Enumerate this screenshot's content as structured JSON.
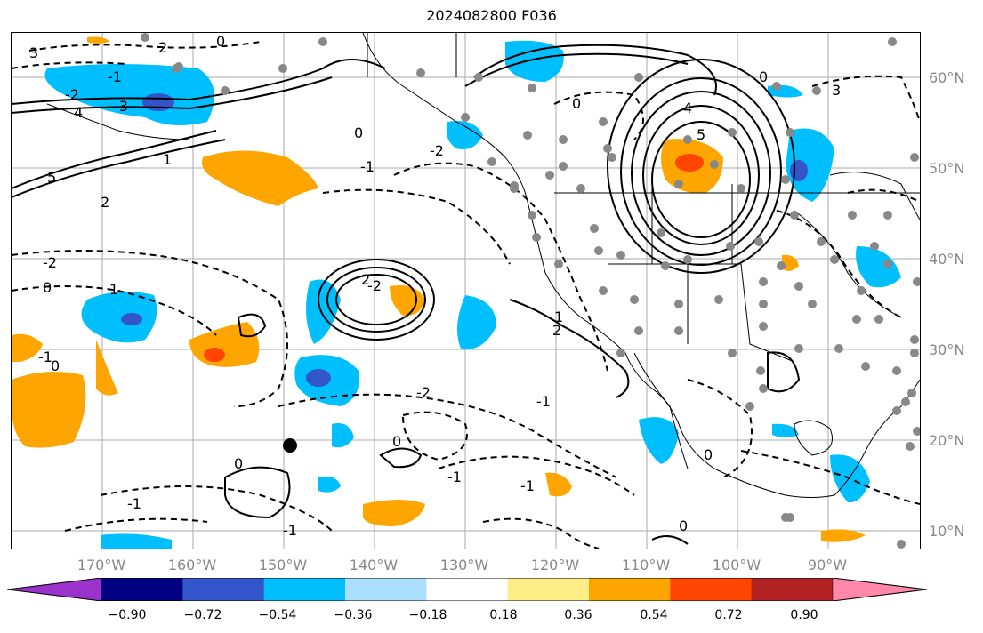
{
  "figure": {
    "title": "2024082800 F036"
  },
  "map": {
    "lat_labels": [
      "60°N",
      "50°N",
      "40°N",
      "30°N",
      "20°N",
      "10°N"
    ],
    "lon_labels": [
      "170°W",
      "160°W",
      "150°W",
      "140°W",
      "130°W",
      "120°W",
      "110°W",
      "100°W",
      "90°W"
    ],
    "contour_labels": [
      "3",
      "2",
      "0",
      "-1",
      "-2",
      "-3",
      "4",
      "5",
      "1",
      "2",
      "0",
      "-2",
      "-1",
      "0",
      "-2",
      "2",
      "1",
      "0",
      "-1",
      "-2",
      "0",
      "-1",
      "0",
      "-1",
      "3",
      "0",
      "2",
      "1",
      "5",
      "4",
      "-2",
      "-1",
      "-1",
      "0",
      "0",
      "-1",
      "0"
    ],
    "marker": "filled black circle near 150°W, 19°N",
    "station_dots": "grey circles over western and central North America"
  },
  "colorbar": {
    "ticks": [
      "−0.90",
      "−0.72",
      "−0.54",
      "−0.36",
      "−0.18",
      "0.18",
      "0.36",
      "0.54",
      "0.72",
      "0.90"
    ],
    "colors": [
      "#9933cc",
      "#000080",
      "#3355cc",
      "#00bfff",
      "#aadfff",
      "#ffffff",
      "#ffee88",
      "#ffa500",
      "#ff4500",
      "#b22222",
      "#ff88aa"
    ]
  }
}
